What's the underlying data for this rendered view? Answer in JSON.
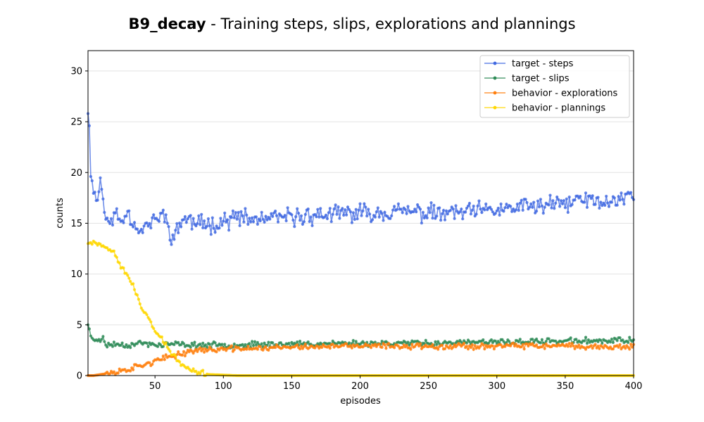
{
  "chart_data": {
    "type": "line",
    "title_bold": "B9_decay",
    "title_rest": " - Training steps, slips, explorations and plannings",
    "xlabel": "episodes",
    "ylabel": "counts",
    "xlim": [
      1,
      400
    ],
    "ylim": [
      0,
      32
    ],
    "xticks": [
      50,
      100,
      150,
      200,
      250,
      300,
      350,
      400
    ],
    "yticks": [
      0,
      5,
      10,
      15,
      20,
      25,
      30
    ],
    "grid": "horizontal",
    "legend_position": "top-right",
    "series": [
      {
        "name": "target - steps",
        "color": "#4169e1",
        "key_points": [
          [
            1,
            25.8
          ],
          [
            2,
            24.6
          ],
          [
            3,
            19.6
          ],
          [
            4,
            19.4
          ],
          [
            6,
            18.0
          ],
          [
            8,
            17.1
          ],
          [
            10,
            19.4
          ],
          [
            12,
            17.6
          ],
          [
            14,
            15.8
          ],
          [
            16,
            14.6
          ],
          [
            20,
            16.0
          ],
          [
            25,
            15.2
          ],
          [
            30,
            16.2
          ],
          [
            35,
            14.8
          ],
          [
            40,
            14.4
          ],
          [
            50,
            15.3
          ],
          [
            55,
            15.9
          ],
          [
            60,
            14.9
          ],
          [
            63,
            13.3
          ],
          [
            70,
            15.5
          ],
          [
            80,
            15.0
          ],
          [
            90,
            14.9
          ],
          [
            100,
            15.2
          ],
          [
            110,
            15.6
          ],
          [
            120,
            15.3
          ],
          [
            150,
            15.6
          ],
          [
            170,
            15.8
          ],
          [
            200,
            16.0
          ],
          [
            230,
            16.2
          ],
          [
            260,
            15.9
          ],
          [
            300,
            16.3
          ],
          [
            320,
            16.6
          ],
          [
            350,
            16.9
          ],
          [
            360,
            17.4
          ],
          [
            380,
            17.0
          ],
          [
            395,
            17.6
          ],
          [
            400,
            17.7
          ]
        ],
        "noise": 1.1,
        "seed": 11
      },
      {
        "name": "target - slips",
        "color": "#2e8b57",
        "key_points": [
          [
            1,
            5.0
          ],
          [
            2,
            4.6
          ],
          [
            3,
            3.9
          ],
          [
            5,
            3.5
          ],
          [
            8,
            3.6
          ],
          [
            12,
            3.6
          ],
          [
            14,
            3.0
          ],
          [
            20,
            3.1
          ],
          [
            30,
            3.0
          ],
          [
            40,
            3.2
          ],
          [
            50,
            3.0
          ],
          [
            60,
            3.1
          ],
          [
            80,
            3.0
          ],
          [
            100,
            3.0
          ],
          [
            150,
            3.1
          ],
          [
            200,
            3.2
          ],
          [
            250,
            3.2
          ],
          [
            300,
            3.3
          ],
          [
            350,
            3.4
          ],
          [
            400,
            3.5
          ]
        ],
        "noise": 0.35,
        "seed": 23
      },
      {
        "name": "behavior - explorations",
        "color": "#ff7f0e",
        "key_points": [
          [
            1,
            0.0
          ],
          [
            5,
            0.0
          ],
          [
            10,
            0.1
          ],
          [
            20,
            0.3
          ],
          [
            30,
            0.6
          ],
          [
            40,
            1.0
          ],
          [
            50,
            1.4
          ],
          [
            60,
            1.8
          ],
          [
            70,
            2.2
          ],
          [
            80,
            2.5
          ],
          [
            100,
            2.6
          ],
          [
            150,
            2.8
          ],
          [
            200,
            2.9
          ],
          [
            250,
            2.9
          ],
          [
            300,
            2.9
          ],
          [
            350,
            2.9
          ],
          [
            400,
            2.8
          ]
        ],
        "noise": 0.35,
        "seed": 37
      },
      {
        "name": "behavior - plannings",
        "color": "#ffd700",
        "key_points": [
          [
            1,
            13.0
          ],
          [
            5,
            13.2
          ],
          [
            10,
            13.0
          ],
          [
            15,
            12.5
          ],
          [
            20,
            12.3
          ],
          [
            22,
            11.8
          ],
          [
            25,
            10.8
          ],
          [
            30,
            9.9
          ],
          [
            35,
            8.5
          ],
          [
            40,
            6.6
          ],
          [
            45,
            5.8
          ],
          [
            50,
            4.5
          ],
          [
            55,
            3.6
          ],
          [
            60,
            2.6
          ],
          [
            65,
            1.7
          ],
          [
            70,
            1.0
          ],
          [
            75,
            0.6
          ],
          [
            80,
            0.3
          ],
          [
            90,
            0.1
          ],
          [
            100,
            0.05
          ],
          [
            110,
            0.0
          ],
          [
            400,
            0.0
          ]
        ],
        "noise": 0.35,
        "seed": 53
      }
    ]
  }
}
